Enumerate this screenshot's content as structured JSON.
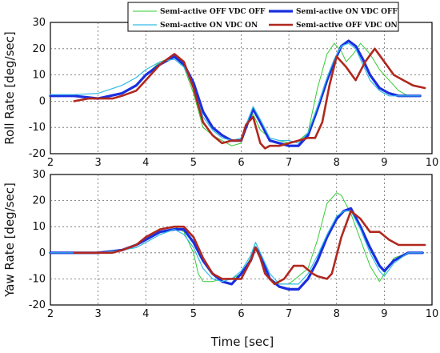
{
  "figure": {
    "x_axis_label": "Time [sec]"
  },
  "chart_data": [
    {
      "type": "line",
      "ylabel": "Roll Rate [deg/sec]",
      "xlabel": "",
      "xlim": [
        2,
        10
      ],
      "ylim": [
        -20,
        30
      ],
      "x_ticks": [
        2,
        3,
        4,
        5,
        6,
        7,
        8,
        9,
        10
      ],
      "y_ticks": [
        -20,
        -10,
        0,
        10,
        20,
        30
      ],
      "grid": true,
      "legend": {
        "position": "top-right",
        "entries": [
          "Semi-active OFF VDC OFF",
          "Semi-active ON VDC OFF",
          "Semi-active ON VDC ON",
          "Semi-active OFF VDC ON"
        ]
      },
      "series": [
        {
          "name": "Semi-active OFF VDC OFF",
          "color": "#33cc33",
          "x": [
            2.0,
            2.5,
            3.0,
            3.5,
            3.8,
            4.0,
            4.3,
            4.6,
            4.8,
            5.0,
            5.2,
            5.4,
            5.6,
            5.8,
            6.0,
            6.1,
            6.25,
            6.4,
            6.6,
            6.8,
            7.0,
            7.2,
            7.4,
            7.6,
            7.8,
            7.95,
            8.1,
            8.2,
            8.35,
            8.5,
            8.7,
            8.9,
            9.1,
            9.3,
            9.5,
            9.75
          ],
          "values": [
            2.0,
            2.0,
            1.0,
            3.0,
            6.0,
            10.0,
            15.0,
            17.0,
            13.0,
            3.0,
            -10.0,
            -13.0,
            -15.0,
            -17.0,
            -16.0,
            -10.0,
            -5.0,
            -11.0,
            -14.0,
            -15.0,
            -16.0,
            -15.0,
            -12.0,
            5.0,
            18.0,
            22.0,
            19.0,
            15.0,
            18.0,
            22.0,
            18.0,
            12.0,
            8.0,
            4.0,
            2.0,
            2.0
          ]
        },
        {
          "name": "Semi-active ON VDC OFF",
          "color": "#1a2fe0",
          "x": [
            2.0,
            2.5,
            3.0,
            3.5,
            3.8,
            4.0,
            4.3,
            4.6,
            4.8,
            5.0,
            5.2,
            5.4,
            5.6,
            5.8,
            6.0,
            6.1,
            6.25,
            6.4,
            6.6,
            6.8,
            7.0,
            7.2,
            7.4,
            7.6,
            7.8,
            7.95,
            8.1,
            8.25,
            8.4,
            8.55,
            8.7,
            8.9,
            9.1,
            9.3,
            9.5,
            9.75
          ],
          "values": [
            2.0,
            2.0,
            1.0,
            3.0,
            6.0,
            10.0,
            14.0,
            17.0,
            14.0,
            7.0,
            -4.0,
            -10.0,
            -13.0,
            -15.0,
            -15.0,
            -10.0,
            -3.0,
            -8.0,
            -15.0,
            -16.0,
            -17.0,
            -17.0,
            -13.0,
            -3.0,
            8.0,
            15.0,
            21.0,
            23.0,
            21.0,
            16.0,
            10.0,
            5.0,
            3.0,
            2.0,
            2.0,
            2.0
          ]
        },
        {
          "name": "Semi-active ON VDC ON",
          "color": "#33bbe6",
          "x": [
            2.0,
            2.5,
            3.0,
            3.5,
            3.8,
            4.0,
            4.3,
            4.6,
            4.8,
            5.0,
            5.2,
            5.4,
            5.6,
            5.8,
            6.0,
            6.1,
            6.25,
            6.4,
            6.6,
            6.8,
            7.0,
            7.2,
            7.4,
            7.6,
            7.8,
            7.95,
            8.1,
            8.25,
            8.4,
            8.55,
            8.7,
            8.9,
            9.1,
            9.3,
            9.5,
            9.75
          ],
          "values": [
            2.5,
            2.5,
            3.0,
            6.0,
            9.0,
            12.0,
            15.0,
            16.0,
            13.0,
            5.0,
            -6.0,
            -11.0,
            -14.0,
            -15.0,
            -14.0,
            -9.0,
            -2.0,
            -7.0,
            -14.0,
            -15.0,
            -15.0,
            -16.0,
            -12.0,
            -2.0,
            9.0,
            16.0,
            21.0,
            22.0,
            20.0,
            14.0,
            8.0,
            4.0,
            2.0,
            2.0,
            2.0,
            2.0
          ]
        },
        {
          "name": "Semi-active OFF VDC ON",
          "color": "#b0281e",
          "x": [
            2.5,
            2.8,
            3.0,
            3.3,
            3.5,
            3.8,
            4.0,
            4.3,
            4.6,
            4.8,
            5.0,
            5.2,
            5.4,
            5.6,
            5.8,
            6.0,
            6.1,
            6.25,
            6.4,
            6.5,
            6.6,
            6.8,
            7.0,
            7.2,
            7.4,
            7.55,
            7.7,
            7.85,
            8.0,
            8.2,
            8.4,
            8.6,
            8.8,
            9.0,
            9.2,
            9.4,
            9.6,
            9.85
          ],
          "values": [
            0.0,
            1.0,
            1.0,
            1.0,
            2.0,
            4.0,
            8.0,
            14.0,
            18.0,
            15.0,
            5.0,
            -8.0,
            -13.0,
            -16.0,
            -15.0,
            -15.0,
            -9.0,
            -6.0,
            -16.0,
            -18.0,
            -17.0,
            -17.0,
            -16.0,
            -15.0,
            -14.0,
            -14.0,
            -8.0,
            6.0,
            17.0,
            13.0,
            8.0,
            15.0,
            20.0,
            15.0,
            10.0,
            8.0,
            6.0,
            5.0
          ]
        }
      ]
    },
    {
      "type": "line",
      "ylabel": "Yaw Rate [deg/sec]",
      "xlabel": "Time [sec]",
      "xlim": [
        2,
        10
      ],
      "ylim": [
        -20,
        30
      ],
      "x_ticks": [
        2,
        3,
        4,
        5,
        6,
        7,
        8,
        9,
        10
      ],
      "y_ticks": [
        -20,
        -10,
        0,
        10,
        20,
        30
      ],
      "grid": true,
      "series": [
        {
          "name": "Semi-active OFF VDC OFF",
          "color": "#33cc33",
          "x": [
            2.0,
            2.5,
            3.0,
            3.5,
            3.8,
            4.0,
            4.3,
            4.6,
            4.8,
            5.0,
            5.1,
            5.2,
            5.4,
            5.6,
            5.8,
            6.0,
            6.2,
            6.3,
            6.4,
            6.6,
            6.8,
            7.0,
            7.2,
            7.4,
            7.6,
            7.8,
            8.0,
            8.1,
            8.3,
            8.5,
            8.7,
            8.9,
            9.0,
            9.2,
            9.5,
            9.8
          ],
          "values": [
            0.0,
            0.0,
            0.0,
            1.0,
            3.0,
            6.0,
            9.0,
            10.0,
            8.0,
            0.0,
            -8.0,
            -11.0,
            -11.0,
            -10.0,
            -10.0,
            -8.0,
            -2.0,
            4.0,
            0.0,
            -10.0,
            -12.0,
            -12.0,
            -9.0,
            -6.0,
            5.0,
            19.0,
            23.0,
            22.0,
            15.0,
            5.0,
            -5.0,
            -11.0,
            -8.0,
            -2.0,
            0.0,
            0.0
          ]
        },
        {
          "name": "Semi-active ON VDC OFF",
          "color": "#1a2fe0",
          "x": [
            2.0,
            2.5,
            3.0,
            3.5,
            3.8,
            4.0,
            4.3,
            4.6,
            4.8,
            5.0,
            5.2,
            5.4,
            5.6,
            5.8,
            6.0,
            6.2,
            6.3,
            6.4,
            6.6,
            6.8,
            7.0,
            7.2,
            7.4,
            7.6,
            7.8,
            8.0,
            8.15,
            8.3,
            8.5,
            8.7,
            8.9,
            9.0,
            9.2,
            9.5,
            9.8
          ],
          "values": [
            0.0,
            0.0,
            0.0,
            1.0,
            3.0,
            5.0,
            8.0,
            9.0,
            9.0,
            4.0,
            -3.0,
            -8.0,
            -11.0,
            -12.0,
            -8.0,
            -3.0,
            2.0,
            -1.0,
            -10.0,
            -13.0,
            -14.0,
            -14.0,
            -10.0,
            -3.0,
            6.0,
            13.0,
            16.0,
            17.0,
            10.0,
            2.0,
            -5.0,
            -7.0,
            -3.0,
            0.0,
            0.0
          ]
        },
        {
          "name": "Semi-active ON VDC ON",
          "color": "#33bbe6",
          "x": [
            2.0,
            2.5,
            3.0,
            3.5,
            3.8,
            4.0,
            4.3,
            4.6,
            4.8,
            5.0,
            5.2,
            5.4,
            5.6,
            5.8,
            6.0,
            6.2,
            6.3,
            6.4,
            6.6,
            6.8,
            7.0,
            7.2,
            7.4,
            7.6,
            7.8,
            8.0,
            8.15,
            8.3,
            8.5,
            8.7,
            8.9,
            9.0,
            9.2,
            9.5,
            9.8
          ],
          "values": [
            0.0,
            0.0,
            0.0,
            1.0,
            2.0,
            4.0,
            7.0,
            9.0,
            7.0,
            2.0,
            -6.0,
            -10.0,
            -11.0,
            -10.0,
            -7.0,
            -1.0,
            4.0,
            0.0,
            -8.0,
            -12.0,
            -12.0,
            -12.0,
            -8.0,
            -1.0,
            7.0,
            14.0,
            16.0,
            16.0,
            9.0,
            0.0,
            -7.0,
            -9.0,
            -4.0,
            0.0,
            0.0
          ]
        },
        {
          "name": "Semi-active OFF VDC ON",
          "color": "#b0281e",
          "x": [
            2.5,
            2.8,
            3.0,
            3.3,
            3.5,
            3.8,
            4.0,
            4.3,
            4.6,
            4.8,
            5.0,
            5.2,
            5.4,
            5.6,
            5.8,
            6.0,
            6.2,
            6.3,
            6.4,
            6.5,
            6.7,
            6.9,
            7.1,
            7.3,
            7.5,
            7.6,
            7.8,
            7.9,
            8.1,
            8.3,
            8.5,
            8.7,
            8.9,
            9.1,
            9.3,
            9.5,
            9.7,
            9.85
          ],
          "values": [
            0.0,
            0.0,
            0.0,
            0.0,
            1.0,
            3.0,
            6.0,
            9.0,
            10.0,
            10.0,
            6.0,
            -2.0,
            -8.0,
            -10.0,
            -10.0,
            -10.0,
            -3.0,
            2.0,
            -2.0,
            -8.0,
            -12.0,
            -10.0,
            -5.0,
            -5.0,
            -8.0,
            -9.0,
            -10.0,
            -8.0,
            6.0,
            16.0,
            13.0,
            8.0,
            8.0,
            5.0,
            3.0,
            3.0,
            3.0,
            3.0
          ]
        }
      ]
    }
  ]
}
